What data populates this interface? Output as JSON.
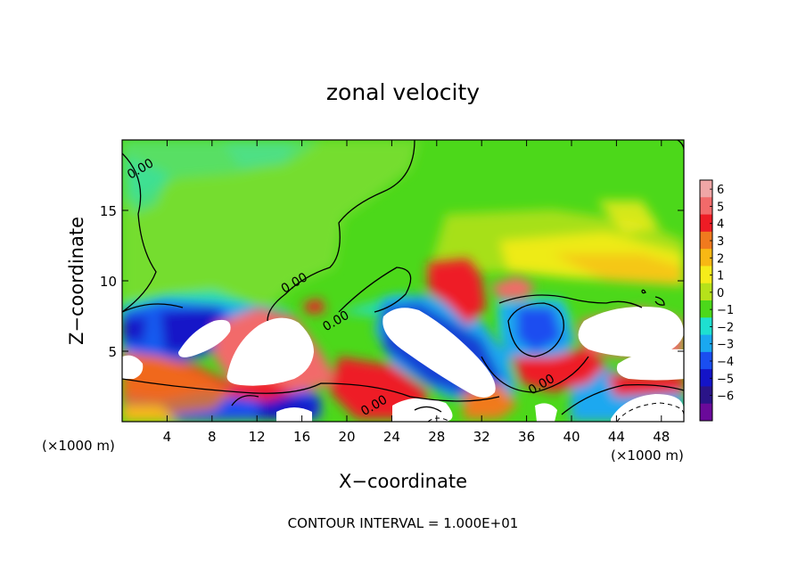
{
  "chart_data": {
    "type": "heatmap",
    "title": "zonal velocity",
    "xlabel": "X−coordinate",
    "ylabel": "Z−coordinate",
    "x_unit": "(×1000 m)",
    "x_unit_right": "(×1000 m)",
    "footer": "CONTOUR INTERVAL = 1.000E+01",
    "xlim": [
      0,
      50
    ],
    "ylim": [
      0,
      20
    ],
    "x_ticks": [
      4,
      8,
      12,
      16,
      20,
      24,
      28,
      32,
      36,
      40,
      44,
      48
    ],
    "y_ticks": [
      5,
      10,
      15
    ],
    "colorbar": {
      "levels": [
        6,
        5,
        4,
        3,
        2,
        1,
        0,
        -1,
        -2,
        -3,
        -4,
        -5,
        -6
      ],
      "colors": [
        "#f0a6a6",
        "#f26a6a",
        "#ee1c25",
        "#f07a1e",
        "#f8b814",
        "#f6ec1a",
        "#b6e21a",
        "#4cd81a",
        "#1ee0d0",
        "#1aa8f0",
        "#1a4ef0",
        "#1414c8",
        "#2a1488",
        "#6a0a9a"
      ],
      "over_color": "#ffffff",
      "under_color": "#ffffff"
    },
    "contour_labels": [
      {
        "text": "0.00",
        "x": 1.8,
        "y": 17.7
      },
      {
        "text": "0.00",
        "x": 15.5,
        "y": 9.6
      },
      {
        "text": "0.00",
        "x": 19.2,
        "y": 6.9
      },
      {
        "text": "0.00",
        "x": 37.5,
        "y": 2.4
      },
      {
        "text": "0.00",
        "x": 22.6,
        "y": 0.9
      }
    ]
  }
}
